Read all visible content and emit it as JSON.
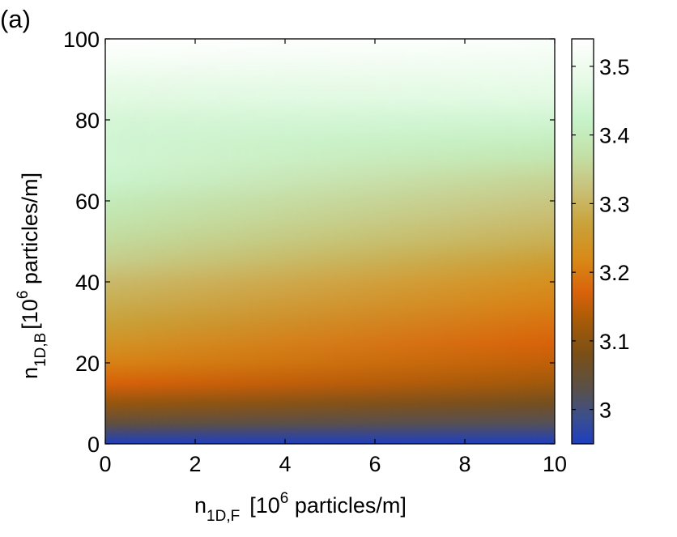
{
  "panel_label": "(a)",
  "chart_data": {
    "type": "heatmap",
    "title": "",
    "xlabel": {
      "base": "n",
      "subscript": "1D,F",
      "unit_prefix": "[10",
      "unit_exponent": "6",
      "unit_suffix": " particles/m]"
    },
    "ylabel": {
      "base": "n",
      "subscript": "1D,B",
      "unit_prefix": "[10",
      "unit_exponent": "6",
      "unit_suffix": " particles/m]"
    },
    "xlim": [
      0,
      10
    ],
    "ylim": [
      0,
      100
    ],
    "x_ticks": [
      0,
      2,
      4,
      6,
      8,
      10
    ],
    "y_ticks": [
      0,
      20,
      40,
      60,
      80,
      100
    ],
    "colorbar": {
      "range": [
        2.95,
        3.54
      ],
      "ticks": [
        3.0,
        3.1,
        3.2,
        3.3,
        3.4,
        3.5
      ],
      "tick_labels": [
        "3",
        "3.1",
        "3.2",
        "3.3",
        "3.4",
        "3.5"
      ],
      "colormap": [
        {
          "value": 2.95,
          "color": "#1f3fbf"
        },
        {
          "value": 2.99,
          "color": "#3c4f8c"
        },
        {
          "value": 3.03,
          "color": "#5a5049"
        },
        {
          "value": 3.08,
          "color": "#7a4f16"
        },
        {
          "value": 3.13,
          "color": "#a85b08"
        },
        {
          "value": 3.17,
          "color": "#d8620a"
        },
        {
          "value": 3.22,
          "color": "#d88a18"
        },
        {
          "value": 3.27,
          "color": "#c9a23a"
        },
        {
          "value": 3.32,
          "color": "#c9c078"
        },
        {
          "value": 3.37,
          "color": "#c2e0a6"
        },
        {
          "value": 3.42,
          "color": "#c6f2c8"
        },
        {
          "value": 3.48,
          "color": "#e6fae6"
        },
        {
          "value": 3.54,
          "color": "#ffffff"
        }
      ]
    },
    "y_grid": [
      0,
      5,
      10,
      15,
      20,
      25,
      30,
      35,
      40,
      45,
      50,
      55,
      60,
      65,
      70,
      75,
      80,
      85,
      90,
      95,
      100
    ],
    "x_grid": [
      0,
      1,
      2,
      3,
      4,
      5,
      6,
      7,
      8,
      9,
      10
    ],
    "values_at_x0": [
      2.95,
      3.04,
      3.11,
      3.17,
      3.21,
      3.24,
      3.27,
      3.29,
      3.31,
      3.34,
      3.36,
      3.38,
      3.4,
      3.43,
      3.44,
      3.44,
      3.45,
      3.47,
      3.49,
      3.52,
      3.54
    ],
    "values_at_x10": [
      2.95,
      3.02,
      3.07,
      3.12,
      3.15,
      3.17,
      3.19,
      3.21,
      3.23,
      3.26,
      3.29,
      3.31,
      3.33,
      3.35,
      3.38,
      3.41,
      3.44,
      3.47,
      3.49,
      3.51,
      3.53
    ],
    "x_dependence_note": ""
  }
}
